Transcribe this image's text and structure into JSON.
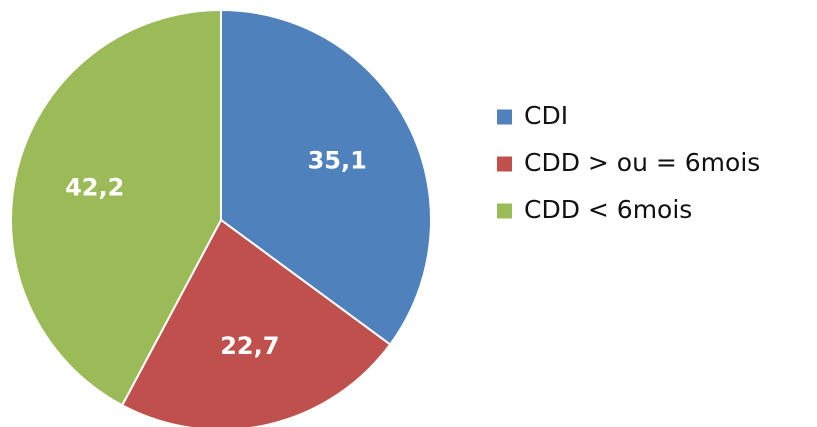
{
  "chart_data": {
    "type": "pie",
    "title": "",
    "categories": [
      "CDI",
      "CDD > ou = 6mois",
      "CDD < 6mois"
    ],
    "values": [
      35.1,
      22.7,
      42.2
    ],
    "value_labels": [
      "35,1",
      "22,7",
      "42,2"
    ],
    "colors": [
      "#4F81BD",
      "#C0504D",
      "#9BBB59"
    ],
    "start": "top",
    "direction": "clockwise",
    "legend": {
      "placement": "right",
      "entries": [
        "CDI",
        "CDD > ou = 6mois",
        "CDD < 6mois"
      ]
    }
  }
}
